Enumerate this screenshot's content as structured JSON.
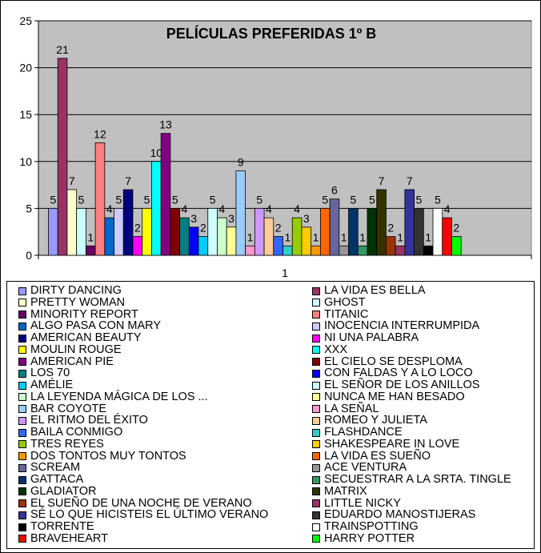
{
  "chart_data": {
    "type": "bar",
    "title": "PELÍCULAS PREFERIDAS 1º B",
    "categories": [
      "1"
    ],
    "ylim": [
      0,
      25
    ],
    "yticks": [
      "0",
      "5",
      "10",
      "15",
      "20",
      "25"
    ],
    "grid": true,
    "legend_position": "bottom",
    "plot_background": "#c0c0c0",
    "series": [
      {
        "name": "DIRTY DANCING",
        "value": 5,
        "color": "#9999ff"
      },
      {
        "name": "LA VIDA ES BELLA",
        "value": 21,
        "color": "#993366"
      },
      {
        "name": "PRETTY WOMAN",
        "value": 7,
        "color": "#ffffcc"
      },
      {
        "name": "GHOST",
        "value": 5,
        "color": "#ccffff"
      },
      {
        "name": "MINORITY REPORT",
        "value": 1,
        "color": "#660066"
      },
      {
        "name": "TITANIC",
        "value": 12,
        "color": "#ff8080"
      },
      {
        "name": "ALGO PASA CON MARY",
        "value": 4,
        "color": "#0066cc"
      },
      {
        "name": "INOCENCIA INTERRUMPIDA",
        "value": 5,
        "color": "#ccccff"
      },
      {
        "name": "AMERICAN BEAUTY",
        "value": 7,
        "color": "#000080"
      },
      {
        "name": "NI UNA PALABRA",
        "value": 2,
        "color": "#ff00ff"
      },
      {
        "name": "MOULIN ROUGE",
        "value": 5,
        "color": "#ffff00"
      },
      {
        "name": "XXX",
        "value": 10,
        "color": "#00ffff"
      },
      {
        "name": "AMERICAN PIE",
        "value": 13,
        "color": "#800080"
      },
      {
        "name": "EL CIELO SE DESPLOMA",
        "value": 5,
        "color": "#800000"
      },
      {
        "name": "LOS 70",
        "value": 4,
        "color": "#008080"
      },
      {
        "name": "CON FALDAS Y A LO LOCO",
        "value": 3,
        "color": "#0000ff"
      },
      {
        "name": "AMÉLIE",
        "value": 2,
        "color": "#00ccff"
      },
      {
        "name": "EL SEÑOR DE LOS ANILLOS",
        "value": 5,
        "color": "#ccffff"
      },
      {
        "name": "LA LEYENDA MÁGICA DE LOS ...",
        "value": 4,
        "color": "#ccffcc"
      },
      {
        "name": "NUNCA ME HAN BESADO",
        "value": 3,
        "color": "#ffff99"
      },
      {
        "name": "BAR COYOTE",
        "value": 9,
        "color": "#99ccff"
      },
      {
        "name": "LA SEÑAL",
        "value": 1,
        "color": "#ff99cc"
      },
      {
        "name": "EL RITMO DEL ÉXITO",
        "value": 5,
        "color": "#cc99ff"
      },
      {
        "name": "ROMEO Y JULIETA",
        "value": 4,
        "color": "#ffcc99"
      },
      {
        "name": "BAILA CONMIGO",
        "value": 2,
        "color": "#3366ff"
      },
      {
        "name": "FLASHDANCE",
        "value": 1,
        "color": "#33cccc"
      },
      {
        "name": "TRES REYES",
        "value": 4,
        "color": "#99cc00"
      },
      {
        "name": "SHAKESPEARE IN LOVE",
        "value": 3,
        "color": "#ffcc00"
      },
      {
        "name": "DOS TONTOS MUY TONTOS",
        "value": 1,
        "color": "#ff9900"
      },
      {
        "name": "LA VIDA ES SUEÑO",
        "value": 5,
        "color": "#ff6600"
      },
      {
        "name": "SCREAM",
        "value": 6,
        "color": "#666699"
      },
      {
        "name": "ACE VENTURA",
        "value": 1,
        "color": "#969696"
      },
      {
        "name": "GATTACA",
        "value": 5,
        "color": "#003366"
      },
      {
        "name": "SECUESTRAR A LA SRTA. TINGLE",
        "value": 1,
        "color": "#339966"
      },
      {
        "name": "GLADIATOR",
        "value": 5,
        "color": "#003300"
      },
      {
        "name": "MATRIX",
        "value": 7,
        "color": "#333300"
      },
      {
        "name": "EL SUEÑO DE UNA NOCHE DE VERANO",
        "value": 2,
        "color": "#993300"
      },
      {
        "name": "LITTLE NICKY",
        "value": 1,
        "color": "#993366"
      },
      {
        "name": "SÉ LO QUE HICISTEIS EL ÚLTIMO VERANO",
        "value": 7,
        "color": "#333399"
      },
      {
        "name": "EDUARDO MANOSTIJERAS",
        "value": 5,
        "color": "#333333"
      },
      {
        "name": "TORRENTE",
        "value": 1,
        "color": "#000000"
      },
      {
        "name": "TRAINSPOTTING",
        "value": 5,
        "color": "#ffffff"
      },
      {
        "name": "BRAVEHEART",
        "value": 4,
        "color": "#ff0000"
      },
      {
        "name": "HARRY POTTER",
        "value": 2,
        "color": "#00ff00"
      }
    ]
  }
}
